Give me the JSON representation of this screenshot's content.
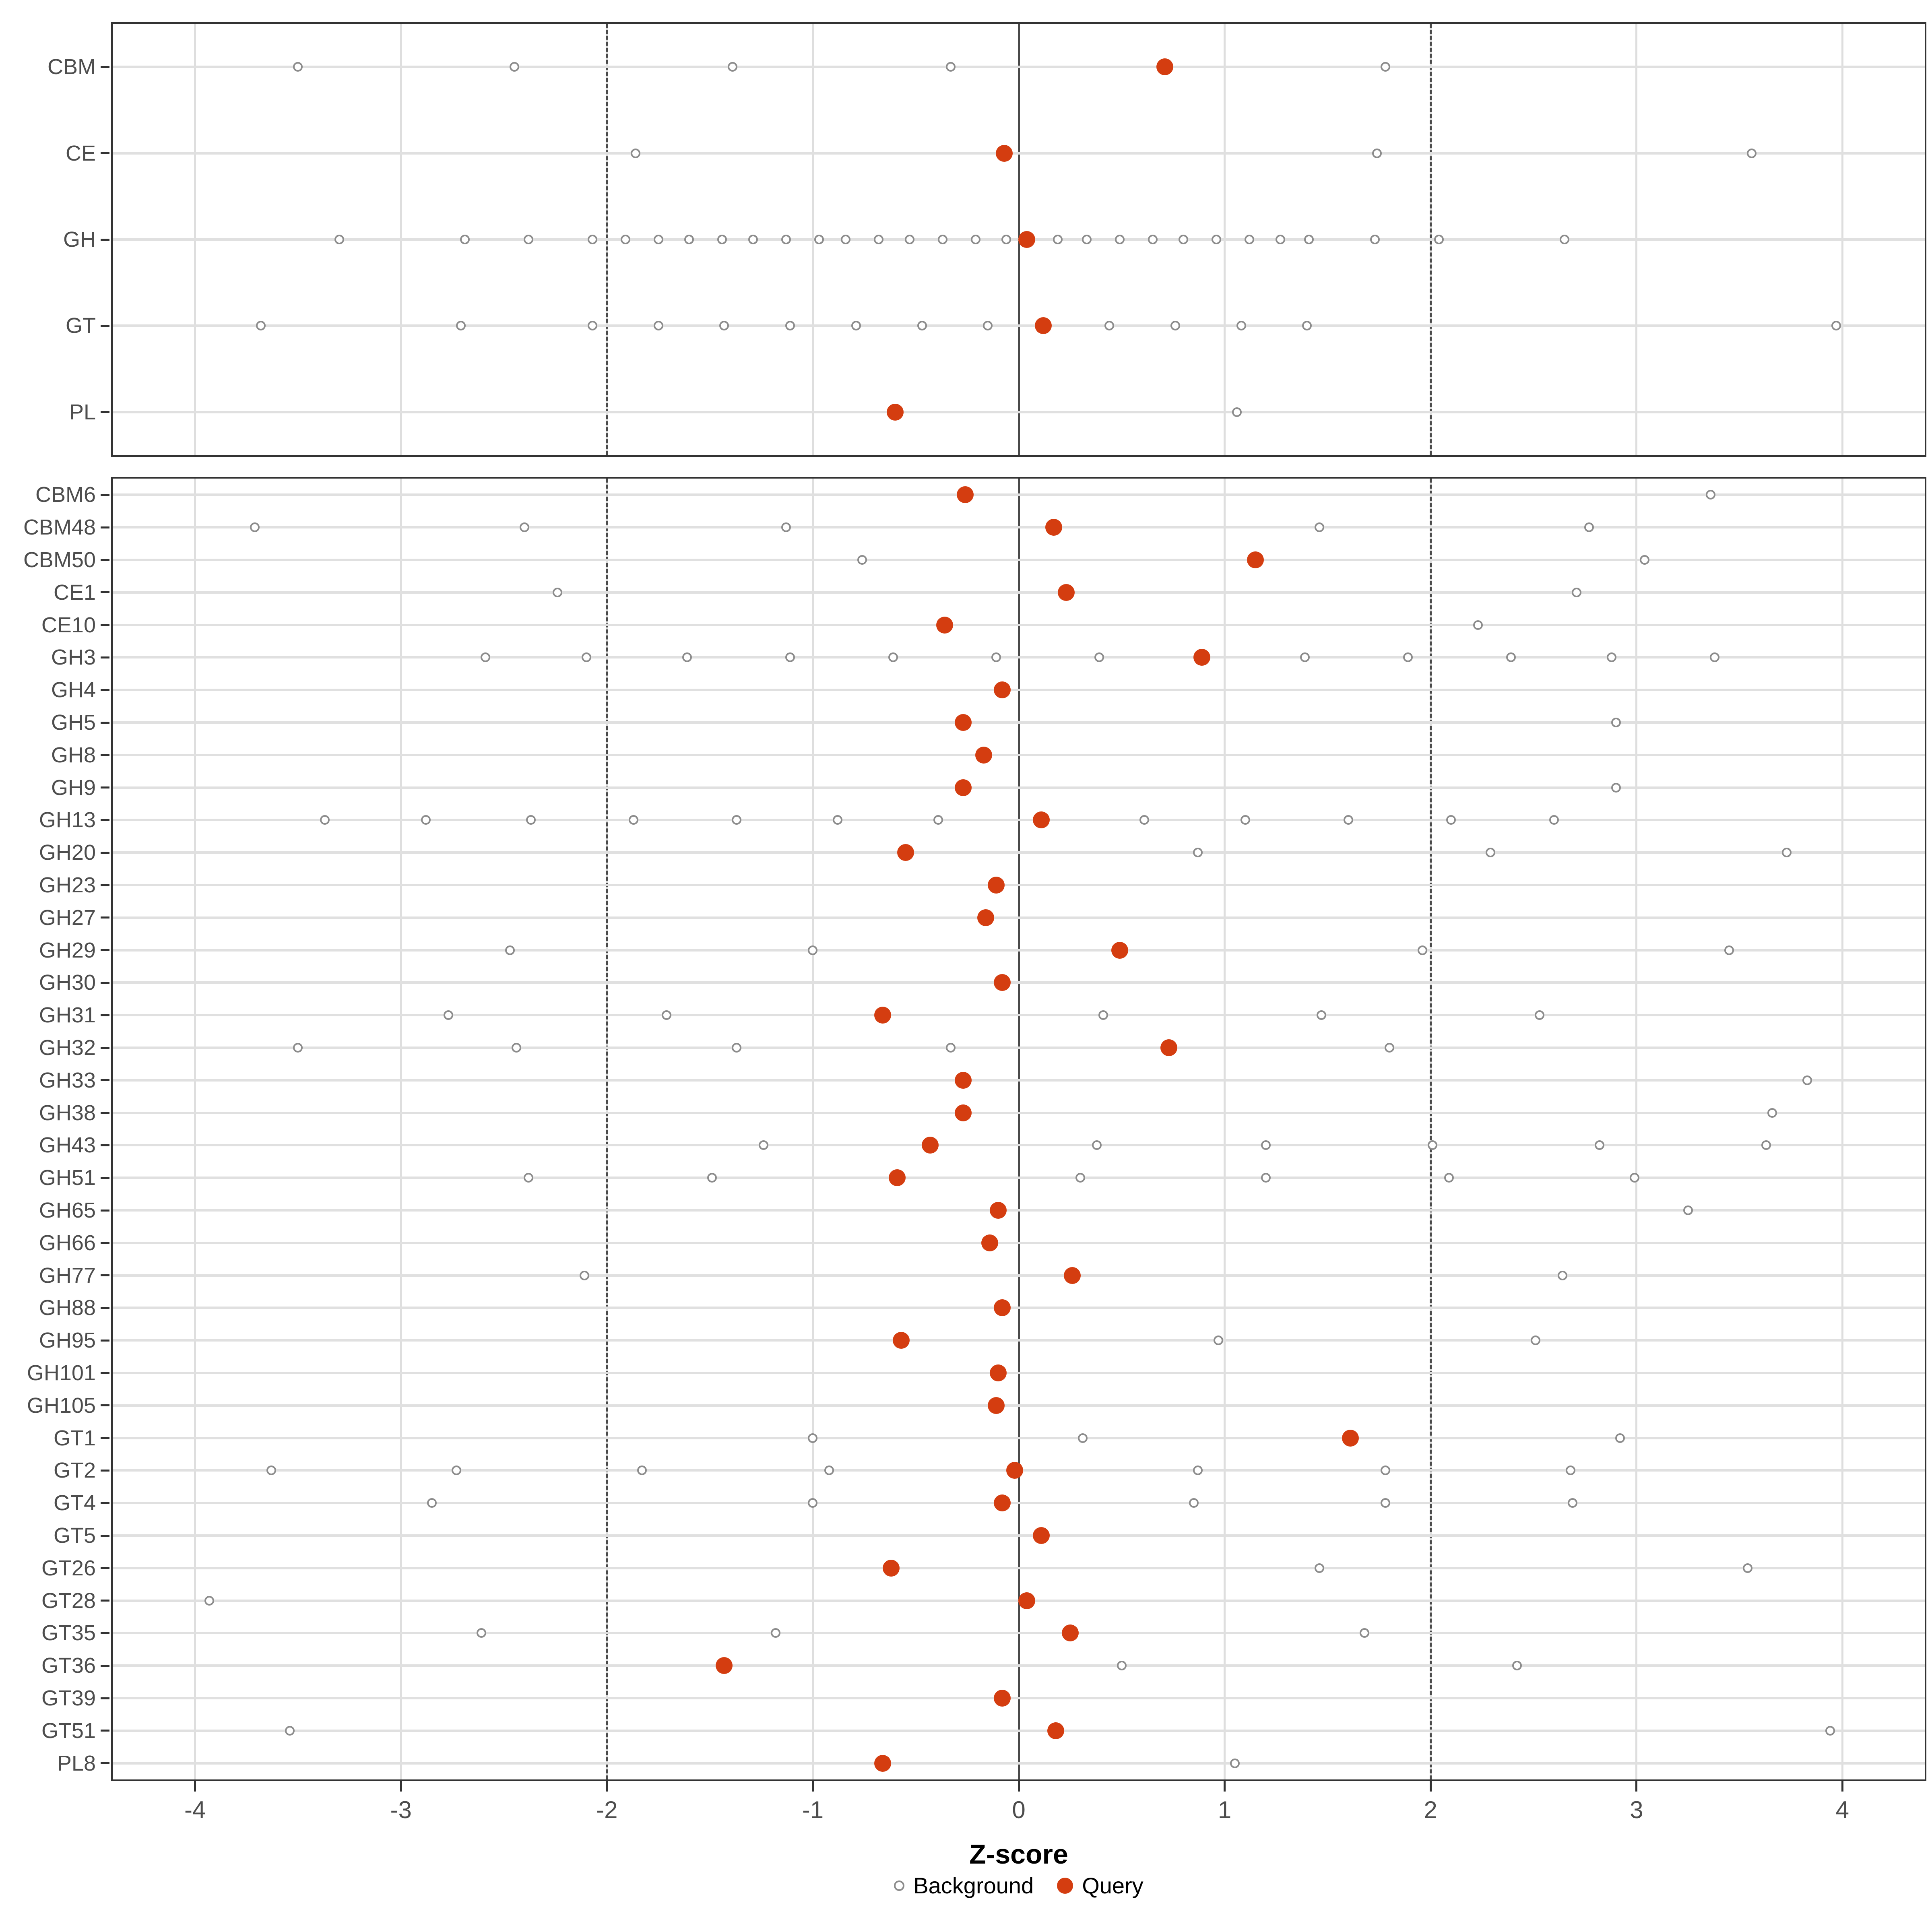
{
  "chart_data": {
    "type": "scatter",
    "title": "",
    "xlabel": "Z-score",
    "ylabel": "",
    "x_domain": [
      -4.4,
      4.4
    ],
    "x_ticks": [
      -4,
      -3,
      -2,
      -1,
      0,
      1,
      2,
      3,
      4
    ],
    "grid": "major-vertical",
    "reference_lines": {
      "solid": [
        0
      ],
      "dashed": [
        -2,
        2
      ]
    },
    "legend_position": "bottom",
    "legend": [
      {
        "label": "Background",
        "type": "open-circle"
      },
      {
        "label": "Query",
        "type": "filled-circle"
      }
    ],
    "colors": {
      "query": "#D43D10",
      "background_stroke": "#8C8C8C",
      "row_line": "#E0E0E0",
      "gridline": "#DEDEDE",
      "reference_line": "#4A4A4A",
      "panel_border": "#333333",
      "axis_text": "#4D4D4D"
    },
    "panels": [
      {
        "name": "summary",
        "rows": [
          {
            "label": "CBM",
            "background": [
              -3.5,
              -2.45,
              -1.39,
              -0.33,
              1.78
            ],
            "query": 0.71
          },
          {
            "label": "CE",
            "background": [
              -1.86,
              1.74,
              3.56
            ],
            "query": -0.07
          },
          {
            "label": "GH",
            "background": [
              -3.3,
              -2.69,
              -2.38,
              -2.07,
              -1.91,
              -1.75,
              -1.6,
              -1.44,
              -1.29,
              -1.13,
              -0.97,
              -0.84,
              -0.68,
              -0.53,
              -0.37,
              -0.21,
              -0.06,
              0.19,
              0.33,
              0.49,
              0.65,
              0.8,
              0.96,
              1.12,
              1.27,
              1.41,
              1.73,
              2.04,
              2.65
            ],
            "query": 0.04
          },
          {
            "label": "GT",
            "background": [
              -3.68,
              -2.71,
              -2.07,
              -1.75,
              -1.43,
              -1.11,
              -0.79,
              -0.47,
              -0.15,
              0.44,
              0.76,
              1.08,
              1.4,
              3.97
            ],
            "query": 0.12
          },
          {
            "label": "PL",
            "background": [
              1.06
            ],
            "query": -0.6
          }
        ]
      },
      {
        "name": "families",
        "rows": [
          {
            "label": "CBM6",
            "background": [
              3.36
            ],
            "query": -0.26
          },
          {
            "label": "CBM48",
            "background": [
              -3.71,
              -2.4,
              -1.13,
              1.46,
              2.77
            ],
            "query": 0.17
          },
          {
            "label": "CBM50",
            "background": [
              -0.76,
              3.04
            ],
            "query": 1.15
          },
          {
            "label": "CE1",
            "background": [
              -2.24,
              2.71
            ],
            "query": 0.23
          },
          {
            "label": "CE10",
            "background": [
              2.23
            ],
            "query": -0.36
          },
          {
            "label": "GH3",
            "background": [
              -2.59,
              -2.1,
              -1.61,
              -1.11,
              -0.61,
              -0.11,
              0.39,
              1.39,
              1.89,
              2.39,
              2.88,
              3.38
            ],
            "query": 0.89
          },
          {
            "label": "GH4",
            "background": [],
            "query": -0.08
          },
          {
            "label": "GH5",
            "background": [
              2.9
            ],
            "query": -0.27
          },
          {
            "label": "GH8",
            "background": [],
            "query": -0.17
          },
          {
            "label": "GH9",
            "background": [
              2.9
            ],
            "query": -0.27
          },
          {
            "label": "GH13",
            "background": [
              -3.37,
              -2.88,
              -2.37,
              -1.87,
              -1.37,
              -0.88,
              -0.39,
              0.61,
              1.1,
              1.6,
              2.1,
              2.6
            ],
            "query": 0.11
          },
          {
            "label": "GH20",
            "background": [
              0.87,
              2.29,
              3.73
            ],
            "query": -0.55
          },
          {
            "label": "GH23",
            "background": [],
            "query": -0.11
          },
          {
            "label": "GH27",
            "background": [],
            "query": -0.16
          },
          {
            "label": "GH29",
            "background": [
              -2.47,
              -1.0,
              1.96,
              3.45
            ],
            "query": 0.49
          },
          {
            "label": "GH30",
            "background": [],
            "query": -0.08
          },
          {
            "label": "GH31",
            "background": [
              -2.77,
              -1.71,
              0.41,
              1.47,
              2.53
            ],
            "query": -0.66
          },
          {
            "label": "GH32",
            "background": [
              -3.5,
              -2.44,
              -1.37,
              -0.33,
              1.8
            ],
            "query": 0.73
          },
          {
            "label": "GH33",
            "background": [
              3.83
            ],
            "query": -0.27
          },
          {
            "label": "GH38",
            "background": [
              3.66
            ],
            "query": -0.27
          },
          {
            "label": "GH43",
            "background": [
              -1.24,
              0.38,
              1.2,
              2.01,
              2.82,
              3.63
            ],
            "query": -0.43
          },
          {
            "label": "GH51",
            "background": [
              -2.38,
              -1.49,
              0.3,
              1.2,
              2.09,
              2.99
            ],
            "query": -0.59
          },
          {
            "label": "GH65",
            "background": [
              3.25
            ],
            "query": -0.1
          },
          {
            "label": "GH66",
            "background": [],
            "query": -0.14
          },
          {
            "label": "GH77",
            "background": [
              -2.11,
              2.64
            ],
            "query": 0.26
          },
          {
            "label": "GH88",
            "background": [],
            "query": -0.08
          },
          {
            "label": "GH95",
            "background": [
              0.97,
              2.51
            ],
            "query": -0.57
          },
          {
            "label": "GH101",
            "background": [],
            "query": -0.1
          },
          {
            "label": "GH105",
            "background": [],
            "query": -0.11
          },
          {
            "label": "GT1",
            "background": [
              -1.0,
              0.31,
              2.92
            ],
            "query": 1.61
          },
          {
            "label": "GT2",
            "background": [
              -3.63,
              -2.73,
              -1.83,
              -0.92,
              0.87,
              1.78,
              2.68
            ],
            "query": -0.02
          },
          {
            "label": "GT4",
            "background": [
              -2.85,
              -1.0,
              0.85,
              1.78,
              2.69
            ],
            "query": -0.08
          },
          {
            "label": "GT5",
            "background": [],
            "query": 0.11
          },
          {
            "label": "GT26",
            "background": [
              1.46,
              3.54
            ],
            "query": -0.62
          },
          {
            "label": "GT28",
            "background": [
              -3.93
            ],
            "query": 0.04
          },
          {
            "label": "GT35",
            "background": [
              -2.61,
              -1.18,
              1.68
            ],
            "query": 0.25
          },
          {
            "label": "GT36",
            "background": [
              0.5,
              2.42
            ],
            "query": -1.43
          },
          {
            "label": "GT39",
            "background": [],
            "query": -0.08
          },
          {
            "label": "GT51",
            "background": [
              -3.54,
              3.94
            ],
            "query": 0.18
          },
          {
            "label": "PL8",
            "background": [
              1.05
            ],
            "query": -0.66
          }
        ]
      }
    ]
  }
}
